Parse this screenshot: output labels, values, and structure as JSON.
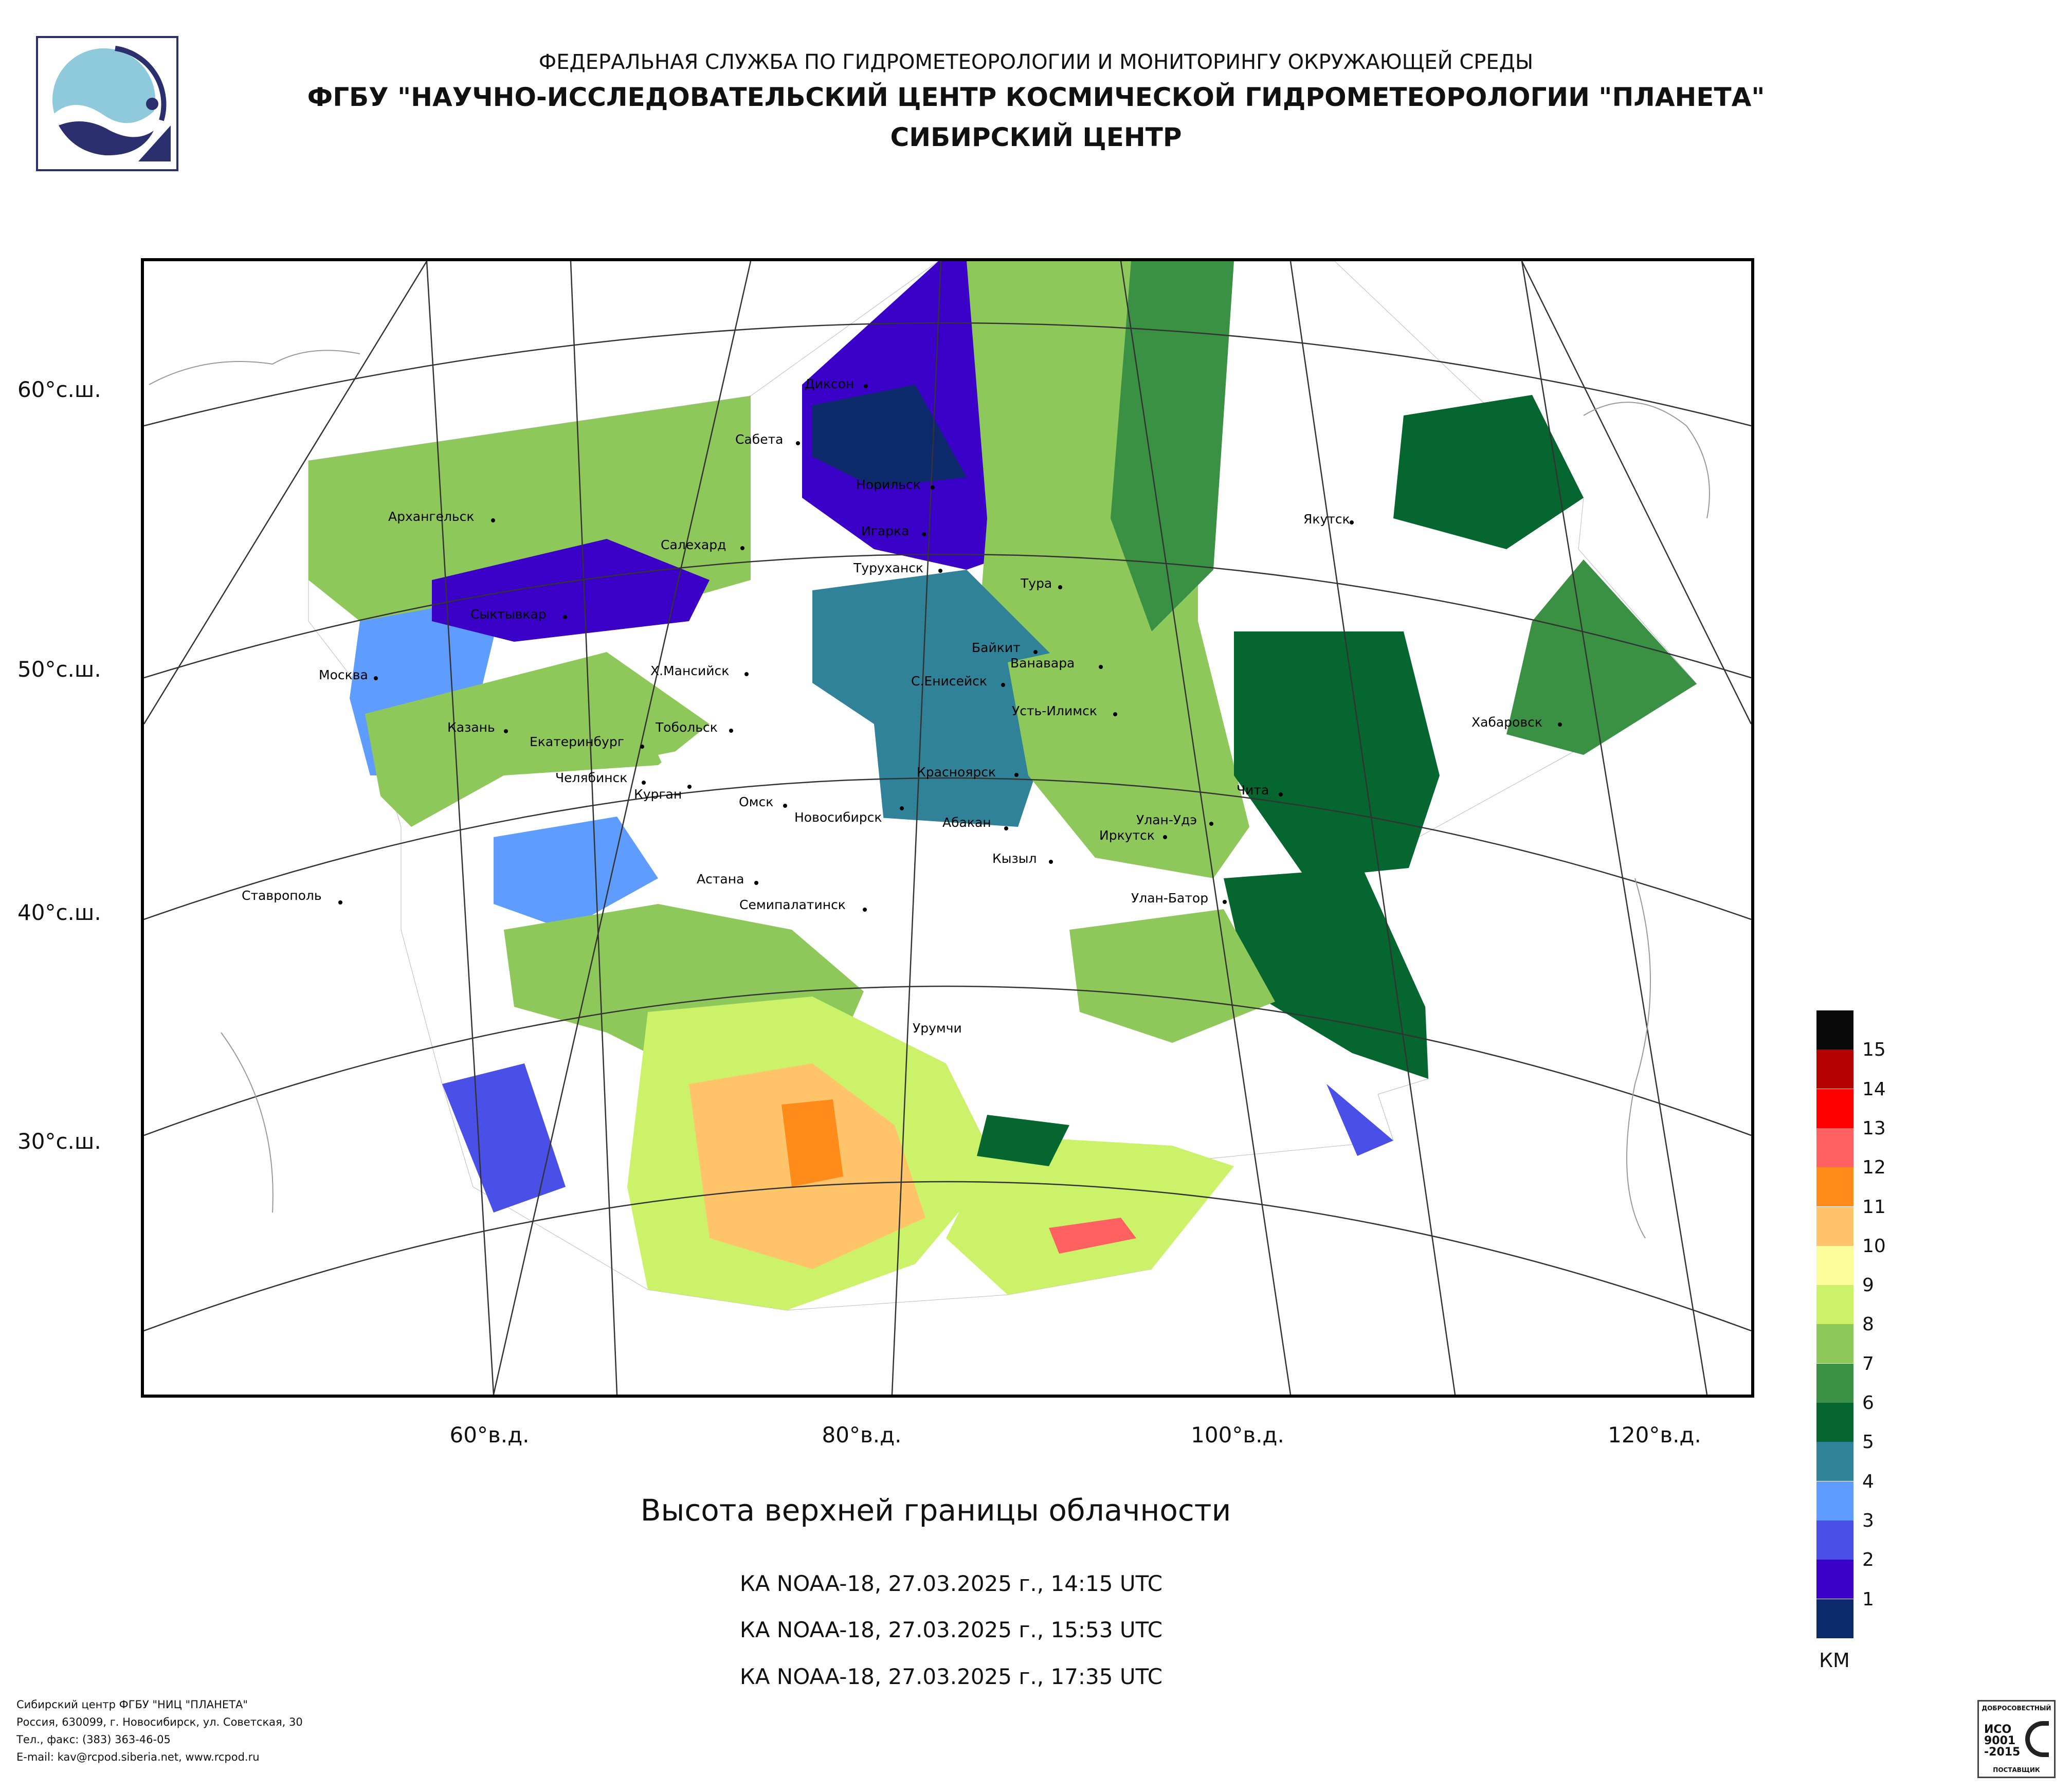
{
  "header": {
    "line1": "ФЕДЕРАЛЬНАЯ СЛУЖБА ПО ГИДРОМЕТЕОРОЛОГИИ И МОНИТОРИНГУ ОКРУЖАЮЩЕЙ СРЕДЫ",
    "line2": "ФГБУ \"НАУЧНО-ИССЛЕДОВАТЕЛЬСКИЙ ЦЕНТР КОСМИЧЕСКОЙ ГИДРОМЕТЕОРОЛОГИИ \"ПЛАНЕТА\"",
    "line3": "СИБИРСКИЙ ЦЕНТР"
  },
  "map": {
    "lat_labels": [
      "60°с.ш.",
      "50°с.ш.",
      "40°с.ш.",
      "30°с.ш."
    ],
    "lon_labels": [
      "60°в.д.",
      "80°в.д.",
      "100°в.д.",
      "120°в.д."
    ],
    "cities": [
      "Диксон",
      "Сабета",
      "Норильск",
      "Архангельск",
      "Игарка",
      "Салехард",
      "Туруханск",
      "Тура",
      "Якутск",
      "Сыктывкар",
      "Байкит",
      "Ванавара",
      "Москва",
      "Х.Мансийск",
      "С.Енисейск",
      "Усть-Илимск",
      "Хабаровск",
      "Казань",
      "Тобольск",
      "Екатеринбург",
      "Челябинск",
      "Курган",
      "Красноярск",
      "Омск",
      "Новосибирск",
      "Абакан",
      "Чита",
      "Улан-Удэ",
      "Иркутск",
      "Кызыл",
      "Ставрополь",
      "Астана",
      "Семипалатинск",
      "Улан-Батор",
      "Урумчи"
    ]
  },
  "title": "Высота верхней границы облачности",
  "passes": [
    "КА NOAA-18, 27.03.2025 г., 14:15 UTC",
    "КА NOAA-18, 27.03.2025 г., 15:53 UTC",
    "КА NOAA-18, 27.03.2025 г., 17:35 UTC"
  ],
  "legend": {
    "unit": "КМ",
    "labels": [
      "15",
      "14",
      "13",
      "12",
      "11",
      "10",
      "9",
      "8",
      "7",
      "6",
      "5",
      "4",
      "3",
      "2",
      "1"
    ],
    "colors": [
      "#0a0a0a",
      "#b50000",
      "#ff0000",
      "#ff6060",
      "#ff8c1a",
      "#ffc46a",
      "#fbfc9a",
      "#ccf26a",
      "#8fc85a",
      "#3a9144",
      "#06662f",
      "#2f8298",
      "#5e9cff",
      "#4a4fe8",
      "#3a00c8",
      "#0c2a6b"
    ]
  },
  "footer": {
    "line1": "Сибирский центр ФГБУ \"НИЦ \"ПЛАНЕТА\"",
    "line2": "Россия, 630099, г. Новосибирск, ул. Советская, 30",
    "line3": "Тел., факс: (383) 363-46-05",
    "line4": "E-mail: kav@rcpod.siberia.net, www.rcpod.ru"
  },
  "iso_badge": {
    "top_text": "ДОБРОСОВЕСТНЫЙ",
    "line1": "ИСО",
    "line2": "9001",
    "line3": "-2015",
    "bottom_text": "ПОСТАВЩИК"
  }
}
